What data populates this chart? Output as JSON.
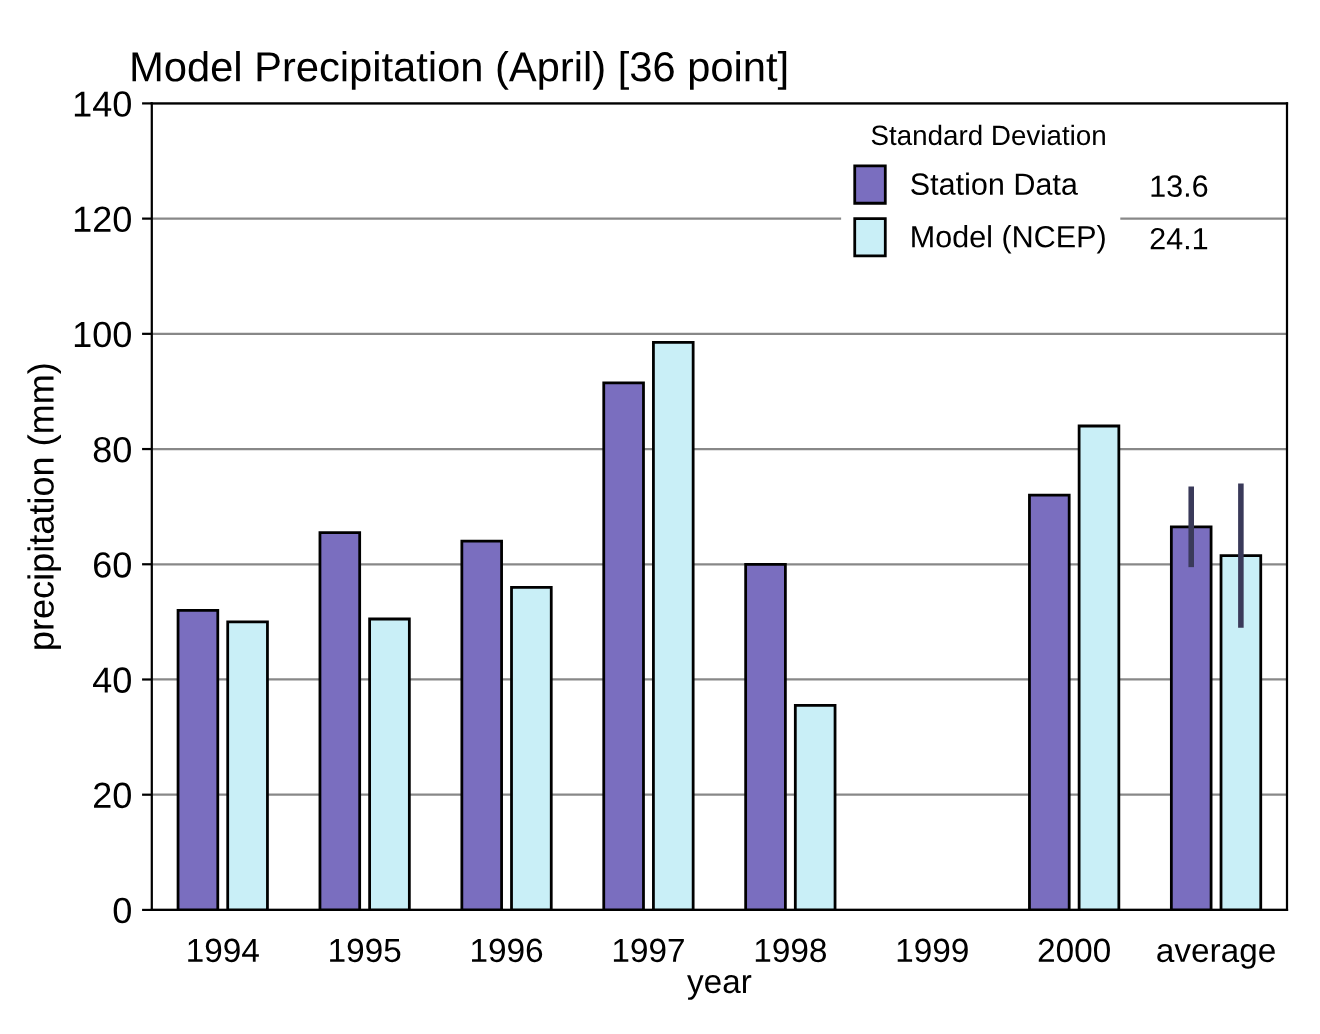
{
  "chart_data": {
    "type": "bar",
    "title": "Model Precipitation (April) [36 point]",
    "xlabel": "year",
    "ylabel": "precipitation (mm)",
    "legend_title": "Standard Deviation",
    "annotations": [
      "13.6",
      "24.1"
    ],
    "categories": [
      "1994",
      "1995",
      "1996",
      "1997",
      "1998",
      "1999",
      "2000",
      "average"
    ],
    "series": [
      {
        "name": "Station Data",
        "color": "#7a6ebf",
        "values": [
          52,
          65.5,
          64,
          91.5,
          60,
          null,
          72,
          66.5
        ],
        "errors": [
          null,
          null,
          null,
          null,
          null,
          null,
          null,
          7
        ]
      },
      {
        "name": "Model (NCEP)",
        "color": "#c9eff7",
        "values": [
          50,
          50.5,
          56,
          98.5,
          35.5,
          null,
          84,
          61.5
        ],
        "errors": [
          null,
          null,
          null,
          null,
          null,
          null,
          null,
          12.5
        ]
      }
    ],
    "ylim": [
      0,
      140
    ],
    "yticks": [
      0,
      20,
      40,
      60,
      80,
      100,
      120,
      140
    ],
    "grid": "y",
    "legend": "top right"
  }
}
